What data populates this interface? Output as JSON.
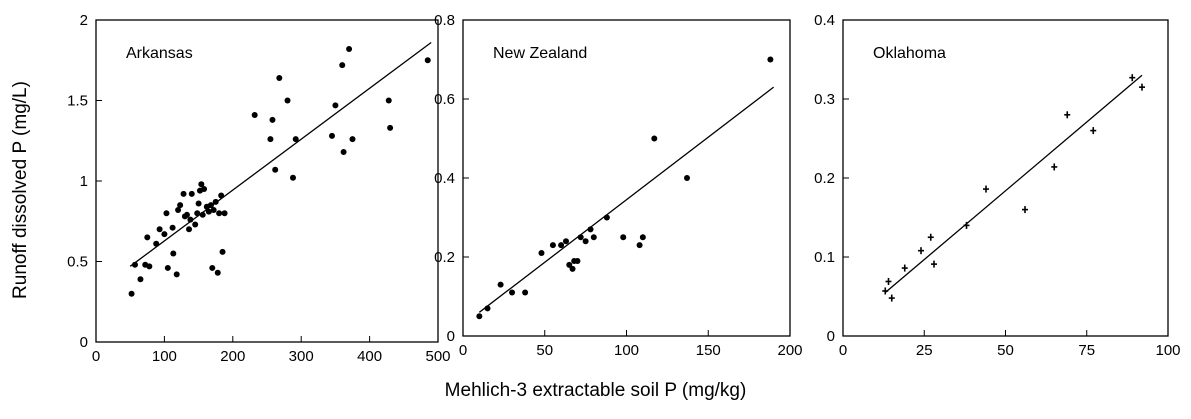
{
  "figure": {
    "ylabel": "Runoff dissolved P (mg/L)",
    "xlabel": "Mehlich-3 extractable soil P (mg/kg)"
  },
  "chart_data": [
    {
      "type": "scatter",
      "title": "Arkansas",
      "marker": "circle",
      "xlim": [
        0,
        500
      ],
      "ylim": [
        0,
        2
      ],
      "xticks": [
        0,
        100,
        200,
        300,
        400,
        500
      ],
      "yticks": [
        0,
        0.5,
        1,
        1.5,
        2
      ],
      "xtick_labels": [
        "0",
        "100",
        "200",
        "300",
        "400",
        "500"
      ],
      "ytick_labels": [
        "0",
        "0.5",
        "1",
        "1.5",
        "2"
      ],
      "fit_line": [
        [
          50,
          0.47
        ],
        [
          490,
          1.86
        ]
      ],
      "points": [
        [
          52,
          0.3
        ],
        [
          57,
          0.48
        ],
        [
          65,
          0.39
        ],
        [
          72,
          0.48
        ],
        [
          75,
          0.65
        ],
        [
          78,
          0.47
        ],
        [
          88,
          0.61
        ],
        [
          93,
          0.7
        ],
        [
          100,
          0.67
        ],
        [
          103,
          0.8
        ],
        [
          105,
          0.46
        ],
        [
          112,
          0.71
        ],
        [
          113,
          0.55
        ],
        [
          118,
          0.42
        ],
        [
          120,
          0.82
        ],
        [
          123,
          0.85
        ],
        [
          128,
          0.92
        ],
        [
          130,
          0.78
        ],
        [
          133,
          0.79
        ],
        [
          136,
          0.7
        ],
        [
          138,
          0.76
        ],
        [
          140,
          0.92
        ],
        [
          145,
          0.73
        ],
        [
          148,
          0.8
        ],
        [
          150,
          0.86
        ],
        [
          152,
          0.94
        ],
        [
          154,
          0.98
        ],
        [
          156,
          0.79
        ],
        [
          158,
          0.95
        ],
        [
          162,
          0.84
        ],
        [
          165,
          0.81
        ],
        [
          168,
          0.85
        ],
        [
          170,
          0.46
        ],
        [
          172,
          0.82
        ],
        [
          175,
          0.87
        ],
        [
          178,
          0.43
        ],
        [
          180,
          0.8
        ],
        [
          183,
          0.91
        ],
        [
          185,
          0.56
        ],
        [
          188,
          0.8
        ],
        [
          232,
          1.41
        ],
        [
          255,
          1.26
        ],
        [
          258,
          1.38
        ],
        [
          262,
          1.07
        ],
        [
          268,
          1.64
        ],
        [
          280,
          1.5
        ],
        [
          288,
          1.02
        ],
        [
          292,
          1.26
        ],
        [
          345,
          1.28
        ],
        [
          350,
          1.47
        ],
        [
          360,
          1.72
        ],
        [
          362,
          1.18
        ],
        [
          370,
          1.82
        ],
        [
          375,
          1.26
        ],
        [
          428,
          1.5
        ],
        [
          430,
          1.33
        ],
        [
          485,
          1.75
        ]
      ]
    },
    {
      "type": "scatter",
      "title": "New Zealand",
      "marker": "circle",
      "xlim": [
        0,
        200
      ],
      "ylim": [
        0,
        0.8
      ],
      "xticks": [
        0,
        50,
        100,
        150,
        200
      ],
      "yticks": [
        0,
        0.2,
        0.4,
        0.6,
        0.8
      ],
      "xtick_labels": [
        "0",
        "50",
        "100",
        "150",
        "200"
      ],
      "ytick_labels": [
        "0",
        "0.2",
        "0.4",
        "0.6",
        "0.8"
      ],
      "fit_line": [
        [
          10,
          0.06
        ],
        [
          190,
          0.63
        ]
      ],
      "points": [
        [
          10,
          0.05
        ],
        [
          15,
          0.07
        ],
        [
          23,
          0.13
        ],
        [
          30,
          0.11
        ],
        [
          38,
          0.11
        ],
        [
          48,
          0.21
        ],
        [
          55,
          0.23
        ],
        [
          60,
          0.23
        ],
        [
          63,
          0.24
        ],
        [
          65,
          0.18
        ],
        [
          67,
          0.17
        ],
        [
          68,
          0.19
        ],
        [
          70,
          0.19
        ],
        [
          72,
          0.25
        ],
        [
          75,
          0.24
        ],
        [
          78,
          0.27
        ],
        [
          80,
          0.25
        ],
        [
          88,
          0.3
        ],
        [
          98,
          0.25
        ],
        [
          108,
          0.23
        ],
        [
          110,
          0.25
        ],
        [
          117,
          0.5
        ],
        [
          137,
          0.4
        ],
        [
          188,
          0.7
        ]
      ]
    },
    {
      "type": "scatter",
      "title": "Oklahoma",
      "marker": "cross",
      "xlim": [
        0,
        100
      ],
      "ylim": [
        0,
        0.4
      ],
      "xticks": [
        0,
        25,
        50,
        75,
        100
      ],
      "yticks": [
        0,
        0.1,
        0.2,
        0.3,
        0.4
      ],
      "xtick_labels": [
        "0",
        "25",
        "50",
        "75",
        "100"
      ],
      "ytick_labels": [
        "0",
        "0.1",
        "0.2",
        "0.3",
        "0.4"
      ],
      "fit_line": [
        [
          13,
          0.055
        ],
        [
          92,
          0.33
        ]
      ],
      "points": [
        [
          13,
          0.057
        ],
        [
          14,
          0.069
        ],
        [
          15,
          0.048
        ],
        [
          19,
          0.086
        ],
        [
          24,
          0.108
        ],
        [
          27,
          0.125
        ],
        [
          28,
          0.091
        ],
        [
          38,
          0.14
        ],
        [
          44,
          0.186
        ],
        [
          56,
          0.16
        ],
        [
          65,
          0.214
        ],
        [
          69,
          0.28
        ],
        [
          77,
          0.26
        ],
        [
          89,
          0.327
        ],
        [
          92,
          0.315
        ]
      ]
    }
  ]
}
